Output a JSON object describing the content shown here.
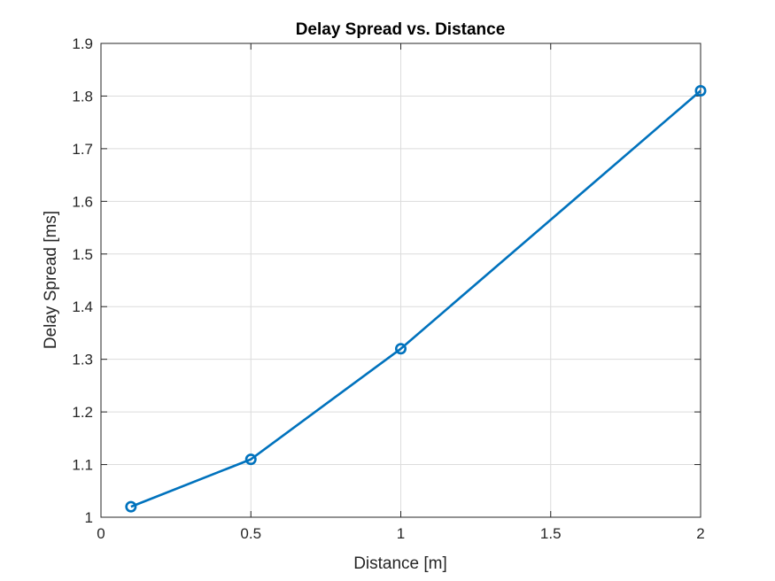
{
  "chart_data": {
    "type": "line",
    "title": "Delay Spread vs. Distance",
    "xlabel": "Distance [m]",
    "ylabel": "Delay Spread [ms]",
    "xlim": [
      0,
      2
    ],
    "ylim": [
      1,
      1.9
    ],
    "xticks": [
      0,
      0.5,
      1,
      1.5,
      2
    ],
    "xtick_labels": [
      "0",
      "0.5",
      "1",
      "1.5",
      "2"
    ],
    "yticks": [
      1,
      1.1,
      1.2,
      1.3,
      1.4,
      1.5,
      1.6,
      1.7,
      1.8,
      1.9
    ],
    "ytick_labels": [
      "1",
      "1.1",
      "1.2",
      "1.3",
      "1.4",
      "1.5",
      "1.6",
      "1.7",
      "1.8",
      "1.9"
    ],
    "grid": true,
    "marker": "circle",
    "color": "#0072bd",
    "series": [
      {
        "x": [
          0.1,
          0.5,
          1,
          2
        ],
        "y": [
          1.02,
          1.11,
          1.32,
          1.81
        ]
      }
    ]
  }
}
